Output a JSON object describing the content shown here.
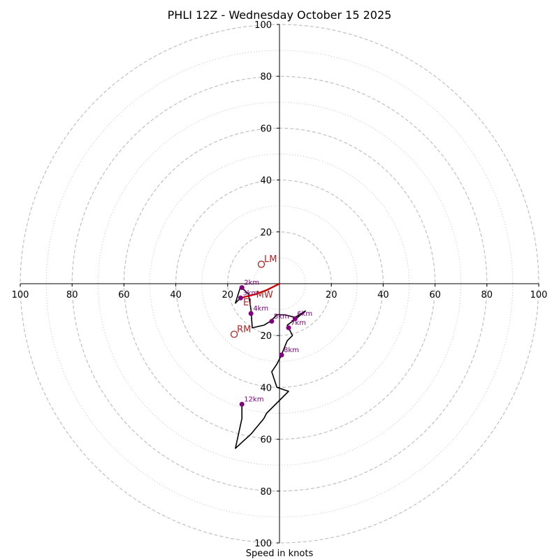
{
  "chart_data": {
    "type": "hodograph",
    "title": "PHLI 12Z - Wednesday October 15 2025",
    "xlabel": "Speed in knots",
    "unit": "kt",
    "rmax": 100,
    "ring_major": [
      20,
      40,
      60,
      80,
      100
    ],
    "ring_minor": [
      10,
      30,
      50,
      70,
      90
    ],
    "x_ticks": [
      {
        "v": -100,
        "label": "100"
      },
      {
        "v": -80,
        "label": "80"
      },
      {
        "v": -60,
        "label": "60"
      },
      {
        "v": -40,
        "label": "40"
      },
      {
        "v": -20,
        "label": "20"
      },
      {
        "v": 20,
        "label": "20"
      },
      {
        "v": 40,
        "label": "40"
      },
      {
        "v": 60,
        "label": "60"
      },
      {
        "v": 80,
        "label": "80"
      },
      {
        "v": 100,
        "label": "100"
      }
    ],
    "y_ticks": [
      {
        "v": 100,
        "label": "100"
      },
      {
        "v": 80,
        "label": "80"
      },
      {
        "v": 60,
        "label": "60"
      },
      {
        "v": 40,
        "label": "40"
      },
      {
        "v": 20,
        "label": "20"
      },
      {
        "v": -20,
        "label": "20"
      },
      {
        "v": -40,
        "label": "40"
      },
      {
        "v": -60,
        "label": "60"
      },
      {
        "v": -80,
        "label": "80"
      },
      {
        "v": -100,
        "label": "100"
      }
    ],
    "low_level_trace": [
      [
        0,
        0
      ],
      [
        -2,
        -1
      ],
      [
        -5,
        -2.5
      ],
      [
        -9,
        -4
      ],
      [
        -13,
        -5
      ],
      [
        -15,
        -5.5
      ]
    ],
    "hodograph_trace": [
      [
        -15,
        -5.5
      ],
      [
        -16,
        -6.5
      ],
      [
        -17,
        -7.5
      ],
      [
        -15,
        -1
      ],
      [
        -14,
        -2
      ],
      [
        -12,
        -4
      ],
      [
        -11,
        -10
      ],
      [
        -10.5,
        -17
      ],
      [
        -6,
        -16
      ],
      [
        -3.5,
        -14.5
      ],
      [
        -1,
        -12
      ],
      [
        2,
        -12
      ],
      [
        6,
        -13
      ],
      [
        10,
        -10.5
      ],
      [
        7,
        -13
      ],
      [
        3,
        -16
      ],
      [
        5,
        -20
      ],
      [
        3,
        -22
      ],
      [
        0.5,
        -28
      ],
      [
        -1,
        -31
      ],
      [
        -3,
        -34
      ],
      [
        -1,
        -40
      ],
      [
        3.5,
        -41.5
      ],
      [
        -5,
        -50
      ],
      [
        -6,
        -52
      ],
      [
        -11,
        -58
      ],
      [
        -17,
        -63.5
      ],
      [
        -14.5,
        -52
      ],
      [
        -14.5,
        -46.5
      ]
    ],
    "height_markers": [
      {
        "label": "2km",
        "u": -14.5,
        "v": -1.5
      },
      {
        "label": "3km",
        "u": -15,
        "v": -5.5
      },
      {
        "label": "4km",
        "u": -11,
        "v": -11.5
      },
      {
        "label": "5km",
        "u": -3,
        "v": -14.5
      },
      {
        "label": "6km",
        "u": 6,
        "v": -13.5
      },
      {
        "label": "7km",
        "u": 3.5,
        "v": -17
      },
      {
        "label": "8km",
        "u": 0.8,
        "v": -27.5
      },
      {
        "label": "12km",
        "u": -14.5,
        "v": -46.5
      }
    ],
    "storm_motion": [
      {
        "label": "LM",
        "u": -7,
        "v": 7.5
      },
      {
        "label": "RM",
        "u": -17.5,
        "v": -19.5
      }
    ],
    "effective_inflow_labels": [
      {
        "label": "EI",
        "u": -14,
        "v": -7
      },
      {
        "label": "MW",
        "u": -9,
        "v": -4
      }
    ],
    "colors": {
      "grid": "#c0c0c0",
      "axis": "#000000",
      "trace": "#000000",
      "low_level": "#cc0000",
      "height": "#800080",
      "storm_motion": "#b22222"
    }
  }
}
